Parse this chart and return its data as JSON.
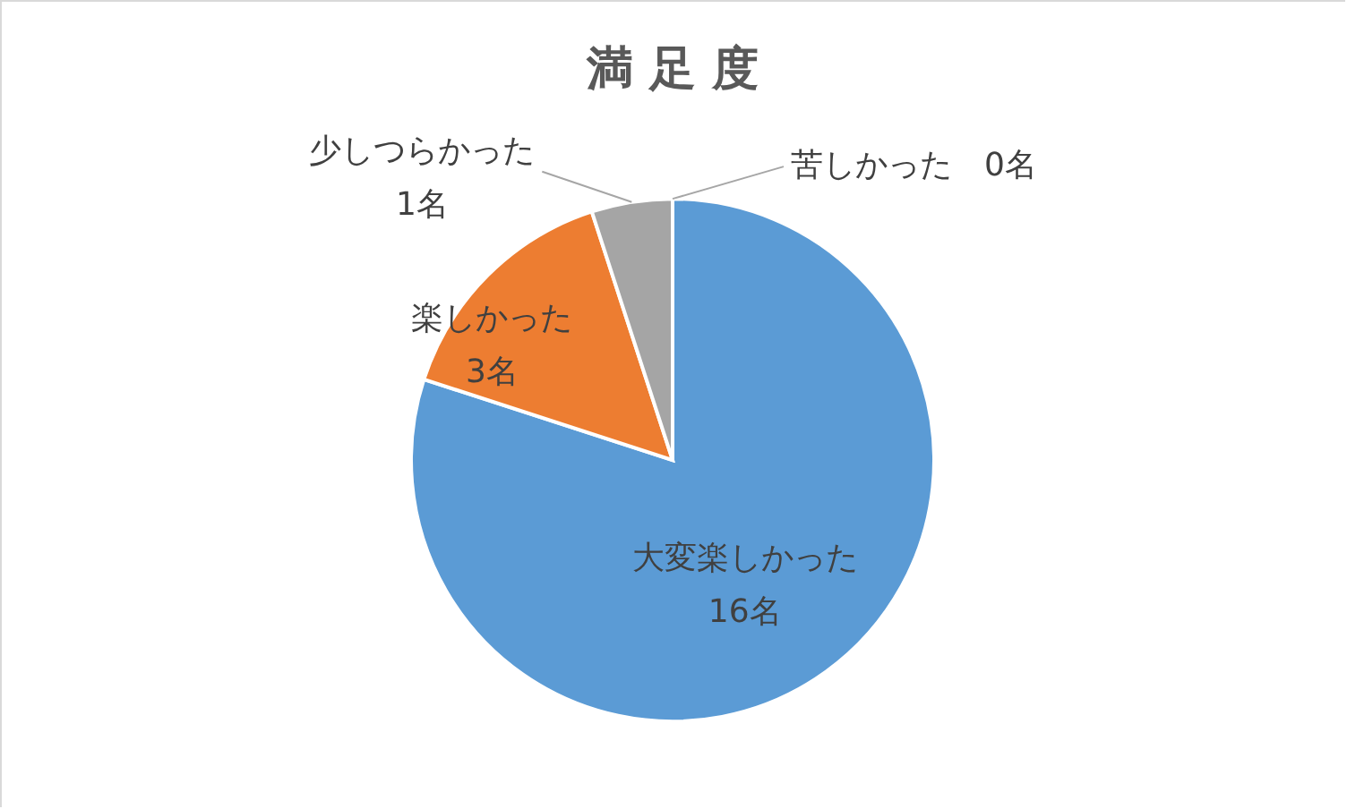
{
  "chart_data": {
    "type": "pie",
    "title": "満 足 度",
    "categories": [
      "大変楽しかった",
      "楽しかった",
      "少しつらかった",
      "苦しかった"
    ],
    "values": [
      16,
      3,
      1,
      0
    ],
    "colors": [
      "#5b9bd5",
      "#ed7d31",
      "#a5a5a5",
      "#ffc000"
    ],
    "value_labels": [
      "16名",
      "3名",
      "1名",
      "0名"
    ]
  }
}
